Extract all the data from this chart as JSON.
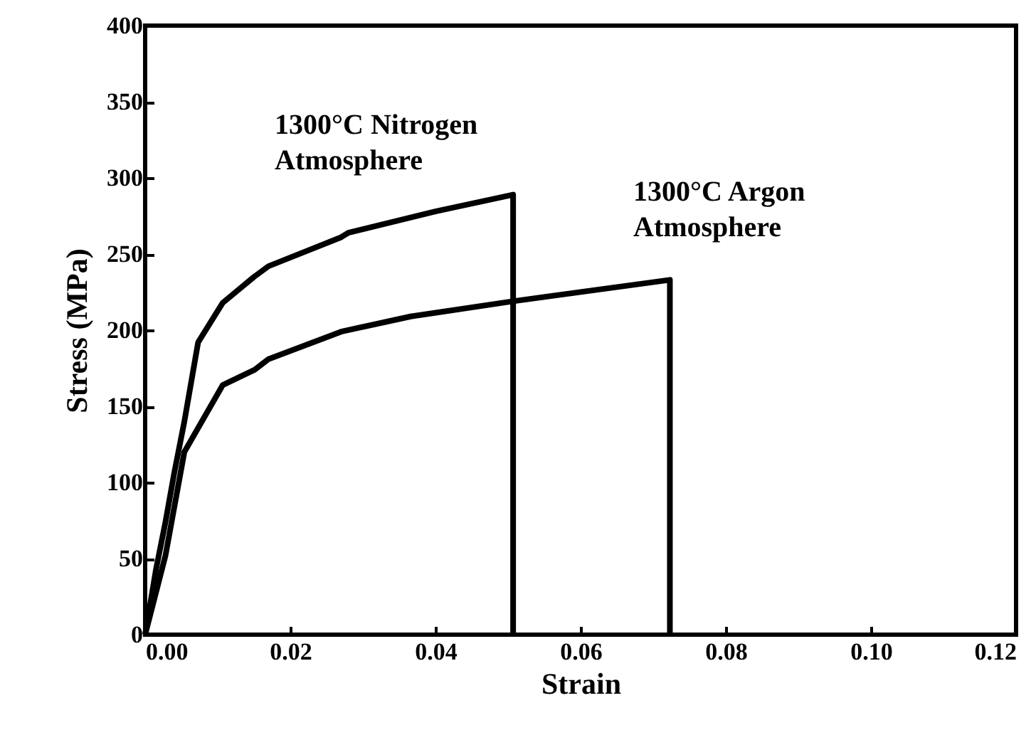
{
  "chart_data": {
    "type": "line",
    "xlabel": "Strain",
    "ylabel": "Stress (MPa)",
    "series": [
      {
        "color": "#000000",
        "x": [
          0,
          0.0015,
          0.0028,
          0.004,
          0.0054,
          0.0073,
          0.0107,
          0.015,
          0.017,
          0.027,
          0.028,
          0.04,
          0.0507,
          0.0507
        ],
        "values": [
          0,
          43,
          74,
          106,
          140,
          192,
          218,
          235,
          242,
          261,
          264,
          278,
          289,
          0
        ]
      },
      {
        "color": "#000000",
        "x": [
          0,
          0.0028,
          0.0054,
          0.0107,
          0.0151,
          0.017,
          0.027,
          0.0366,
          0.0507,
          0.0723,
          0.0723
        ],
        "values": [
          0,
          52,
          120,
          164,
          174,
          181,
          199,
          209,
          219,
          233,
          0
        ]
      }
    ],
    "xlim": [
      0,
      0.12
    ],
    "ylim": [
      0,
      400
    ],
    "xticks": [
      {
        "value": 0,
        "label": "0.00"
      },
      {
        "value": 0.02,
        "label": "0.02"
      },
      {
        "value": 0.04,
        "label": "0.04"
      },
      {
        "value": 0.06,
        "label": "0.06"
      },
      {
        "value": 0.08,
        "label": "0.08"
      },
      {
        "value": 0.1,
        "label": "0.10"
      },
      {
        "value": 0.12,
        "label": "0.12"
      }
    ],
    "yticks": [
      0,
      50,
      100,
      150,
      200,
      250,
      300,
      350,
      400
    ],
    "grid": false,
    "line_style": "solid",
    "marker": "none",
    "annotations": [
      "1300°C Nitrogen\nAtmosphere",
      "1300°C Argon\nAtmosphere"
    ]
  }
}
